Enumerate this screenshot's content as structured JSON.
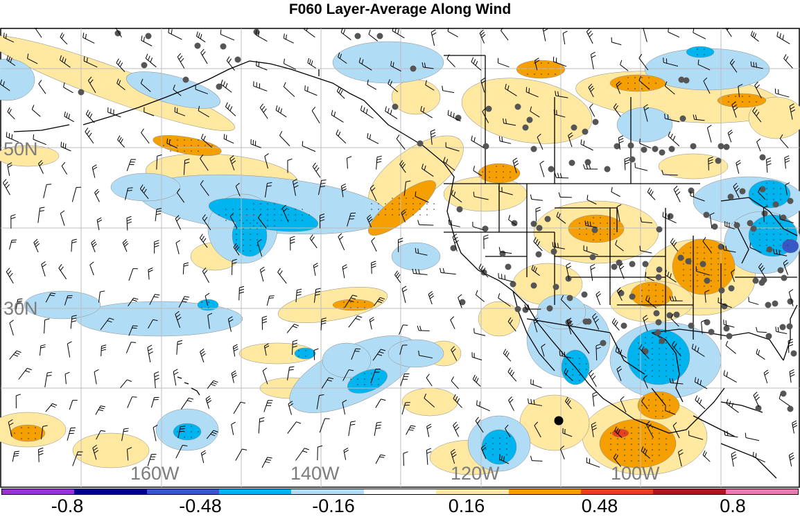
{
  "title": "F060 Layer-Average Along Wind",
  "lat_labels": [
    "50N",
    "30N"
  ],
  "lon_labels": [
    "160W",
    "140W",
    "120W",
    "100W"
  ],
  "colorbar": {
    "colors": [
      "#9b30d3",
      "#00008b",
      "#3657c6",
      "#00b4f0",
      "#b1dcf6",
      "#ffffff",
      "#ffe9a0",
      "#f5a000",
      "#e8401c",
      "#a8181c",
      "#ee78b4"
    ],
    "labels": [
      "-0.8",
      "-0.48",
      "-0.16",
      "0.16",
      "0.48",
      "0.8"
    ]
  },
  "fill_colors": {
    "neg_light": "#b1dcf6",
    "neg_mid": "#00b4f0",
    "neg_dark": "#3657c6",
    "pos_light": "#ffe9a0",
    "pos_mid": "#f5a000",
    "pos_dark": "#e8401c"
  }
}
